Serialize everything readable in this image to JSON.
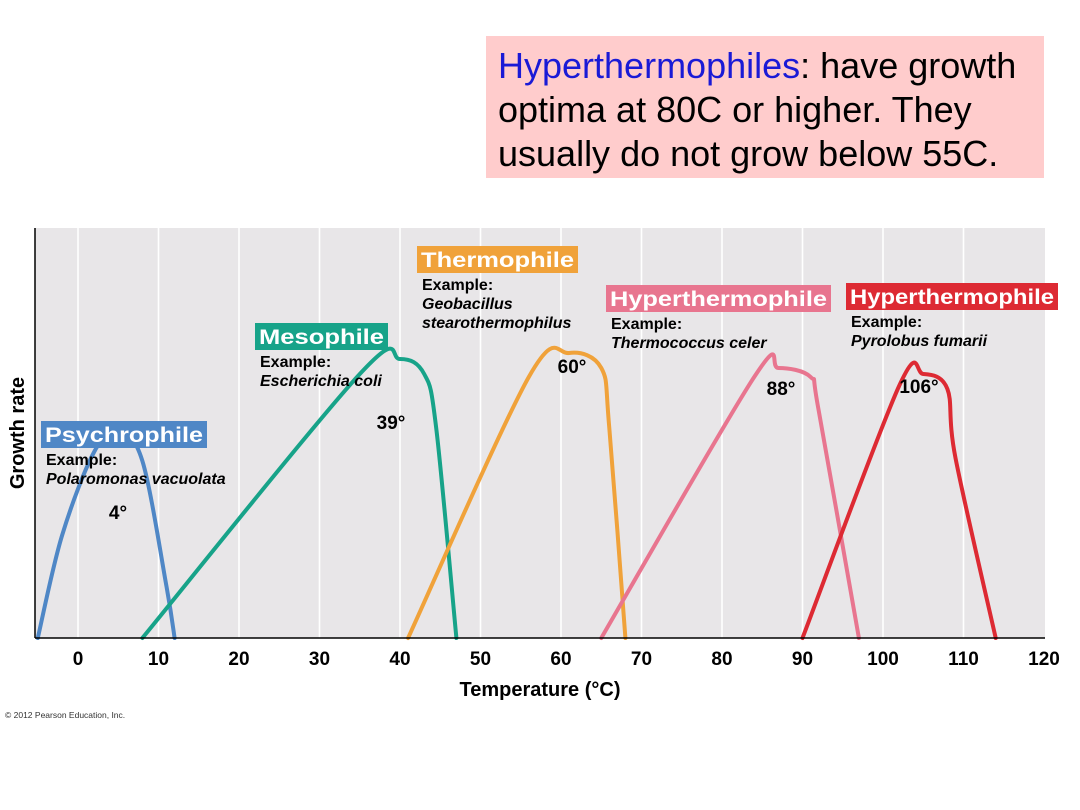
{
  "note": {
    "keyword": "Hyperthermophiles",
    "text": ": have growth optima at 80C or higher. They usually do not grow below 55C."
  },
  "copyright": "© 2012 Pearson Education, Inc.",
  "chart_data": {
    "type": "line",
    "xlabel": "Temperature (°C)",
    "ylabel": "Growth rate",
    "xlim": [
      -5,
      120
    ],
    "x_ticks": [
      0,
      10,
      20,
      30,
      40,
      50,
      60,
      70,
      80,
      90,
      100,
      110,
      120
    ],
    "grid": "vertical",
    "series": [
      {
        "name": "Psychrophile",
        "example_label": "Example:",
        "example": "Polaromonas vacuolata",
        "optimum_label": "4°",
        "color": "#4f87c6",
        "points": [
          [
            -5,
            0
          ],
          [
            -2,
            0.34
          ],
          [
            2,
            0.62
          ],
          [
            5,
            0.69
          ],
          [
            8,
            0.59
          ],
          [
            11,
            0.17
          ],
          [
            12,
            0
          ]
        ]
      },
      {
        "name": "Mesophile",
        "example_label": "Example:",
        "example": "Escherichia coli",
        "optimum_label": "39°",
        "color": "#17a389",
        "points": [
          [
            8,
            0
          ],
          [
            35,
            0.88
          ],
          [
            40,
            0.93
          ],
          [
            43,
            0.88
          ],
          [
            44.5,
            0.7
          ],
          [
            47,
            0
          ]
        ]
      },
      {
        "name": "Thermophile",
        "example_label": "Example:",
        "example": "Geobacillus stearothermophilus",
        "optimum_label": "60°",
        "color": "#f0a23a",
        "points": [
          [
            41,
            0
          ],
          [
            56,
            0.87
          ],
          [
            61,
            0.95
          ],
          [
            65,
            0.9
          ],
          [
            66,
            0.7
          ],
          [
            68,
            0
          ]
        ]
      },
      {
        "name": "Hyperthermophile",
        "example_label": "Example:",
        "example": "Thermococcus celer",
        "optimum_label": "88°",
        "color": "#e8758f",
        "points": [
          [
            65,
            0
          ],
          [
            84,
            0.87
          ],
          [
            87,
            0.9
          ],
          [
            91,
            0.87
          ],
          [
            92,
            0.76
          ],
          [
            97,
            0
          ]
        ]
      },
      {
        "name": "Hyperthermophile",
        "example_label": "Example:",
        "example": "Pyrolobus fumarii",
        "optimum_label": "106°",
        "color": "#dd2a33",
        "points": [
          [
            90,
            0
          ],
          [
            102,
            0.84
          ],
          [
            105,
            0.88
          ],
          [
            108,
            0.83
          ],
          [
            109,
            0.6
          ],
          [
            114,
            0
          ]
        ]
      }
    ]
  }
}
